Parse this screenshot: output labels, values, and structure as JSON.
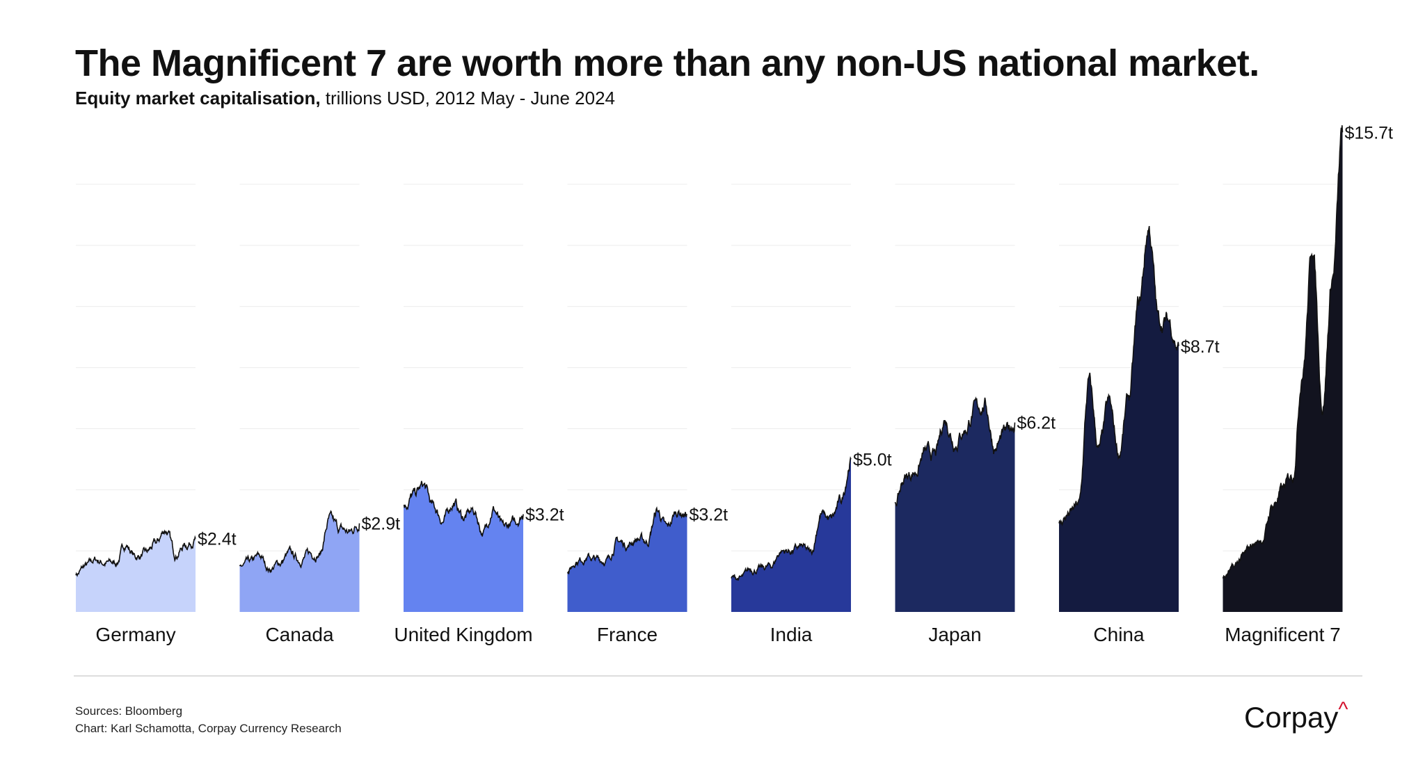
{
  "title": "The Magnificent 7 are worth more than any non-US national market.",
  "subtitle_bold": "Equity market capitalisation,",
  "subtitle_rest": " trillions USD, 2012 May - June 2024",
  "chart_data": {
    "type": "area",
    "title": "The Magnificent 7 are worth more than any non-US national market.",
    "ylabel": "trillions USD",
    "ylim": [
      0,
      14
    ],
    "gridlines": [
      2,
      4,
      6,
      8,
      10,
      12,
      14
    ],
    "grid": true,
    "x_years": [
      2012,
      2013,
      2014,
      2015,
      2016,
      2017,
      2018,
      2019,
      2020,
      2021,
      2022,
      2023,
      2024
    ],
    "series": [
      {
        "name": "Germany",
        "color": "#c6d3fb",
        "end_label": "$2.4t",
        "values": [
          1.2,
          1.5,
          1.7,
          1.6,
          1.6,
          2.2,
          1.8,
          1.9,
          2.2,
          2.7,
          1.9,
          2.2,
          2.4
        ]
      },
      {
        "name": "Canada",
        "color": "#8fa5f4",
        "end_label": "$2.9t",
        "values": [
          1.5,
          1.6,
          1.8,
          1.4,
          1.6,
          1.9,
          1.7,
          1.9,
          1.9,
          3.0,
          2.7,
          2.6,
          2.9
        ]
      },
      {
        "name": "United Kingdom",
        "color": "#6483f0",
        "end_label": "$3.2t",
        "values": [
          3.5,
          3.8,
          4.1,
          3.4,
          3.0,
          3.6,
          3.1,
          3.3,
          2.6,
          3.4,
          2.7,
          2.9,
          3.2
        ]
      },
      {
        "name": "France",
        "color": "#405dcc",
        "end_label": "$3.2t",
        "values": [
          1.3,
          1.7,
          1.8,
          1.7,
          1.7,
          2.3,
          2.2,
          2.4,
          2.3,
          3.3,
          2.7,
          3.3,
          3.2
        ]
      },
      {
        "name": "India",
        "color": "#27399a",
        "end_label": "$5.0t",
        "values": [
          1.1,
          1.1,
          1.4,
          1.4,
          1.5,
          2.0,
          2.0,
          2.1,
          1.9,
          3.2,
          3.0,
          3.6,
          5.0
        ]
      },
      {
        "name": "Japan",
        "color": "#1c2960",
        "end_label": "$6.2t",
        "values": [
          3.6,
          4.4,
          4.6,
          5.2,
          5.1,
          6.3,
          5.6,
          6.0,
          6.6,
          6.8,
          5.4,
          5.8,
          6.2
        ]
      },
      {
        "name": "China",
        "color": "#141b40",
        "end_label": "$8.7t",
        "values": [
          2.9,
          3.2,
          3.5,
          7.5,
          5.3,
          6.8,
          5.2,
          7.0,
          10.0,
          12.6,
          9.5,
          9.5,
          8.7
        ]
      },
      {
        "name": "Magnificent 7",
        "color": "#12131f",
        "end_label": "$15.7t",
        "values": [
          1.1,
          1.4,
          1.8,
          2.2,
          2.4,
          3.5,
          4.0,
          4.5,
          8.0,
          12.0,
          6.8,
          11.0,
          15.7
        ]
      }
    ]
  },
  "footer": {
    "sources": "Sources: Bloomberg",
    "credit": "Chart: Karl Schamotta, Corpay Currency Research",
    "logo": "Corpay",
    "logo_mark": "^"
  }
}
